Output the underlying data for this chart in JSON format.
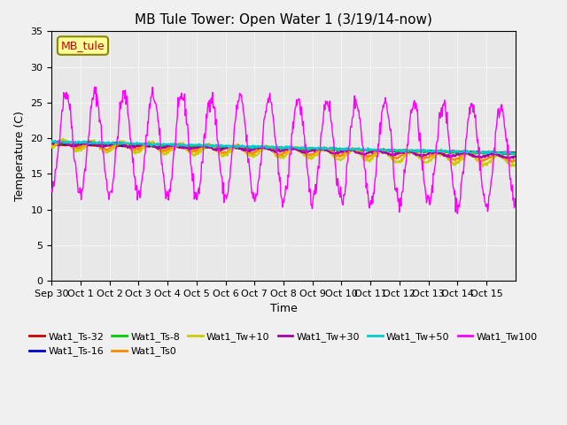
{
  "title": "MB Tule Tower: Open Water 1 (3/19/14-now)",
  "xlabel": "Time",
  "ylabel": "Temperature (C)",
  "ylim": [
    0,
    35
  ],
  "yticks": [
    0,
    5,
    10,
    15,
    20,
    25,
    30,
    35
  ],
  "n_days": 16,
  "x_tick_labels": [
    "Sep 30",
    "Oct 1",
    "Oct 2",
    "Oct 3",
    "Oct 4",
    "Oct 5",
    "Oct 6",
    "Oct 7",
    "Oct 8",
    "Oct 9",
    "Oct 10",
    "Oct 11",
    "Oct 12",
    "Oct 13",
    "Oct 14",
    "Oct 15"
  ],
  "legend_label": "MB_tule",
  "series_order": [
    "Wat1_Ts-32",
    "Wat1_Ts-16",
    "Wat1_Ts-8",
    "Wat1_Ts0",
    "Wat1_Tw+10",
    "Wat1_Tw+30",
    "Wat1_Tw+50",
    "Wat1_Tw100"
  ],
  "series_colors": [
    "#cc0000",
    "#0000cc",
    "#00cc00",
    "#ff8800",
    "#cccc00",
    "#aa00aa",
    "#00cccc",
    "#ff00ff"
  ],
  "bg_color": "#e8e8e8",
  "fig_bg_color": "#f0f0f0"
}
